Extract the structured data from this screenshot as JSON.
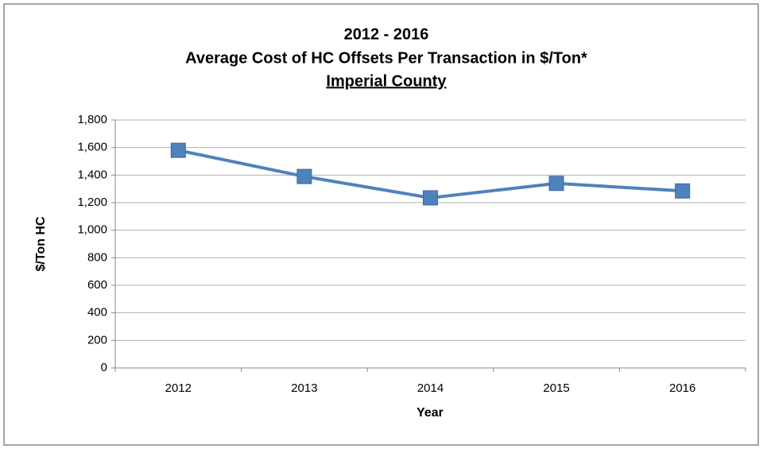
{
  "chart_data": {
    "type": "line",
    "title": [
      "2012 - 2016",
      "Average Cost of HC Offsets Per Transaction in  $/Ton*",
      "Imperial County"
    ],
    "x_label": "Year",
    "y_label": "$/Ton HC",
    "categories": [
      "2012",
      "2013",
      "2014",
      "2015",
      "2016"
    ],
    "series": [
      {
        "name": "$/Ton HC",
        "color": "#4f81bd",
        "values": [
          1580,
          1390,
          1235,
          1340,
          1285
        ]
      }
    ],
    "ylim": [
      0,
      1800
    ],
    "yticks": [
      0,
      200,
      400,
      600,
      800,
      {
        "value": 1000,
        "label": "1,000"
      },
      {
        "value": 1200,
        "label": "1,200"
      },
      {
        "value": 1400,
        "label": "1,400"
      },
      {
        "value": 1600,
        "label": "1,600"
      },
      {
        "value": 1800,
        "label": "1,800"
      }
    ],
    "grid": true
  }
}
